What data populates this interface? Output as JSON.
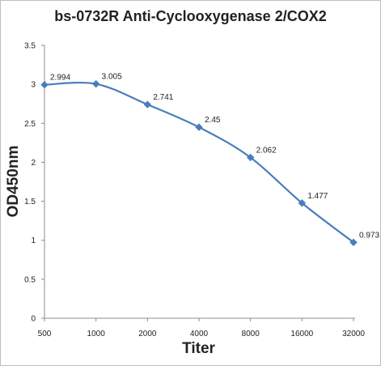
{
  "chart_data": {
    "type": "line",
    "title": "bs-0732R Anti-Cyclooxygenase 2/COX2",
    "xlabel": "Titer",
    "ylabel": "OD450nm",
    "categories": [
      "500",
      "1000",
      "2000",
      "4000",
      "8000",
      "16000",
      "32000"
    ],
    "series": [
      {
        "values": [
          2.994,
          3.005,
          2.741,
          2.45,
          2.062,
          1.477,
          0.973
        ],
        "color": "#4a7ebb",
        "marker": "diamond",
        "smooth": true
      }
    ],
    "data_labels": [
      "2.994",
      "3.005",
      "2.741",
      "2.45",
      "2.062",
      "1.477",
      "0.973"
    ],
    "ylim": [
      0,
      3.5
    ],
    "yticks": [
      0,
      0.5,
      1,
      1.5,
      2,
      2.5,
      3,
      3.5
    ],
    "ytick_labels": [
      "0",
      "0.5",
      "1",
      "1.5",
      "2",
      "2.5",
      "3",
      "3.5"
    ],
    "grid": false,
    "legend": "none"
  }
}
